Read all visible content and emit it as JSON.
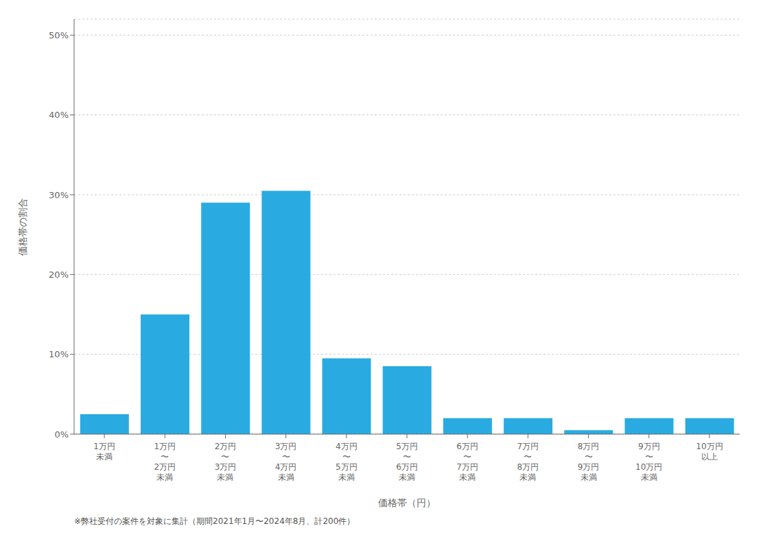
{
  "chart_data": {
    "type": "bar",
    "categories": [
      "1万円\n未満",
      "1万円\n〜\n2万円\n未満",
      "2万円\n〜\n3万円\n未満",
      "3万円\n〜\n4万円\n未満",
      "4万円\n〜\n5万円\n未満",
      "5万円\n〜\n6万円\n未満",
      "6万円\n〜\n7万円\n未満",
      "7万円\n〜\n8万円\n未満",
      "8万円\n〜\n9万円\n未満",
      "9万円\n〜\n10万円\n未満",
      "10万円\n以上"
    ],
    "values": [
      2.5,
      15.0,
      29.0,
      30.5,
      9.5,
      8.5,
      2.0,
      2.0,
      0.5,
      2.0,
      2.0
    ],
    "color": "#29ABE2",
    "xlabel": "価格帯（円）",
    "ylabel": "価格帯の割合",
    "footnote": "※弊社受付の案件を対象に集計（期間2021年1月〜2024年8月、計200件）",
    "ylim": [
      0,
      52
    ],
    "yticks": [
      {
        "value": 0,
        "label": "0%"
      },
      {
        "value": 10,
        "label": "10%"
      },
      {
        "value": 20,
        "label": "20%"
      },
      {
        "value": 30,
        "label": "30%"
      },
      {
        "value": 40,
        "label": "40%"
      },
      {
        "value": 50,
        "label": "50%"
      }
    ],
    "grid": true
  }
}
